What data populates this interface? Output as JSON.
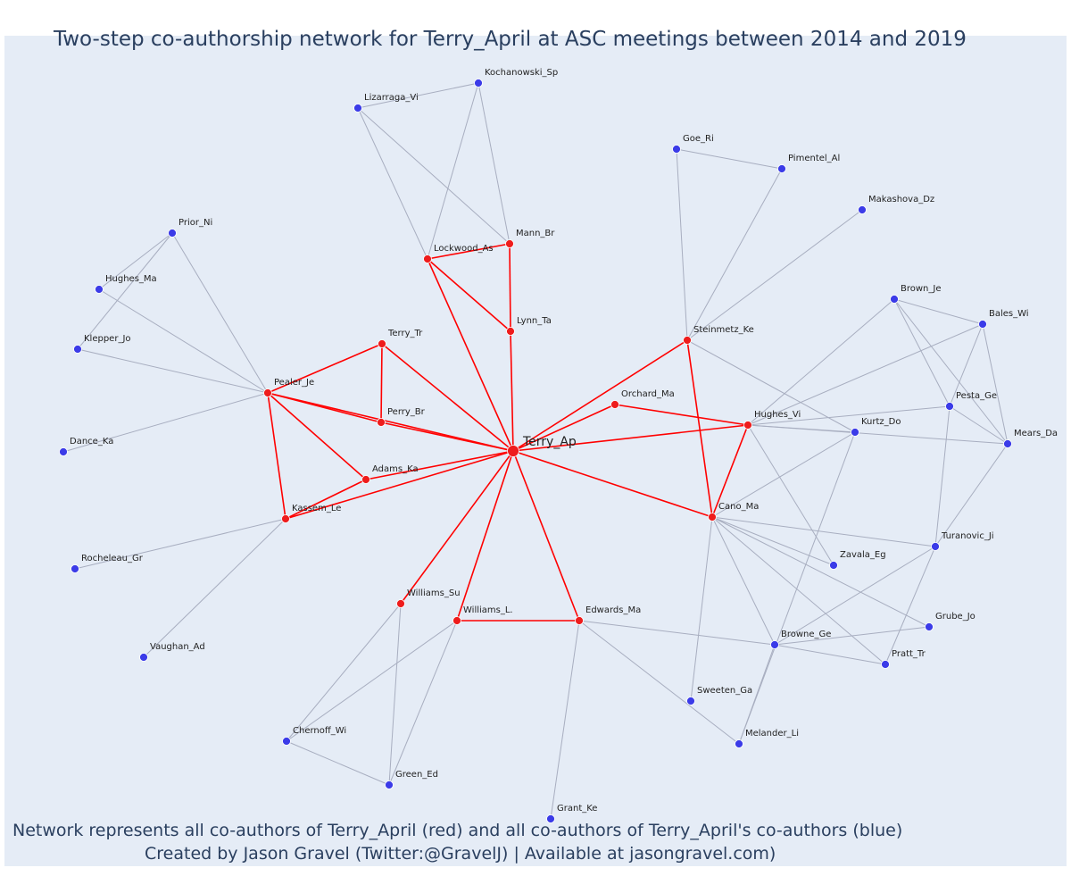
{
  "title": "Two-step co-authorship network for Terry_April at ASC meetings between 2014 and 2019",
  "caption_line1": "Network represents all co-authors of Terry_April (red) and all co-authors of Terry_April's co-authors (blue)",
  "caption_line2": "Created by Jason Gravel (Twitter:@GravelJ) | Available at jasongravel.com)",
  "colors": {
    "background": "#e5ecf6",
    "red_node": "#ee1c1c",
    "blue_node": "#3b3be8",
    "red_edge": "#ff0000",
    "grey_edge": "#a8aec0"
  },
  "nodes": [
    {
      "id": "Terry_Ap",
      "label": "Terry_Ap",
      "group": "center"
    },
    {
      "id": "Lockwood_As",
      "label": "Lockwood_As",
      "group": "red"
    },
    {
      "id": "Mann_Br",
      "label": "Mann_Br",
      "group": "red"
    },
    {
      "id": "Lynn_Ta",
      "label": "Lynn_Ta",
      "group": "red"
    },
    {
      "id": "Terry_Tr",
      "label": "Terry_Tr",
      "group": "red"
    },
    {
      "id": "Pealer_Je",
      "label": "Pealer_Je",
      "group": "red"
    },
    {
      "id": "Perry_Br",
      "label": "Perry_Br",
      "group": "red"
    },
    {
      "id": "Orchard_Ma",
      "label": "Orchard_Ma",
      "group": "red"
    },
    {
      "id": "Steinmetz_Ke",
      "label": "Steinmetz_Ke",
      "group": "red"
    },
    {
      "id": "Hughes_Vi",
      "label": "Hughes_Vi",
      "group": "red"
    },
    {
      "id": "Adams_Ka",
      "label": "Adams_Ka",
      "group": "red"
    },
    {
      "id": "Kassem_Le",
      "label": "Kassem_Le",
      "group": "red"
    },
    {
      "id": "Cano_Ma",
      "label": "Cano_Ma",
      "group": "red"
    },
    {
      "id": "Williams_Su",
      "label": "Williams_Su",
      "group": "red"
    },
    {
      "id": "Williams_L.",
      "label": "Williams_L.",
      "group": "red"
    },
    {
      "id": "Edwards_Ma",
      "label": "Edwards_Ma",
      "group": "red"
    },
    {
      "id": "Kochanowski_Sp",
      "label": "Kochanowski_Sp",
      "group": "blue"
    },
    {
      "id": "Lizarraga_Vi",
      "label": "Lizarraga_Vi",
      "group": "blue"
    },
    {
      "id": "Goe_Ri",
      "label": "Goe_Ri",
      "group": "blue"
    },
    {
      "id": "Pimentel_Al",
      "label": "Pimentel_Al",
      "group": "blue"
    },
    {
      "id": "Makashova_Dz",
      "label": "Makashova_Dz",
      "group": "blue"
    },
    {
      "id": "Prior_Ni",
      "label": "Prior_Ni",
      "group": "blue"
    },
    {
      "id": "Hughes_Ma",
      "label": "Hughes_Ma",
      "group": "blue"
    },
    {
      "id": "Klepper_Jo",
      "label": "Klepper_Jo",
      "group": "blue"
    },
    {
      "id": "Dance_Ka",
      "label": "Dance_Ka",
      "group": "blue"
    },
    {
      "id": "Rocheleau_Gr",
      "label": "Rocheleau_Gr",
      "group": "blue"
    },
    {
      "id": "Vaughan_Ad",
      "label": "Vaughan_Ad",
      "group": "blue"
    },
    {
      "id": "Brown_Je",
      "label": "Brown_Je",
      "group": "blue"
    },
    {
      "id": "Bales_Wi",
      "label": "Bales_Wi",
      "group": "blue"
    },
    {
      "id": "Pesta_Ge",
      "label": "Pesta_Ge",
      "group": "blue"
    },
    {
      "id": "Kurtz_Do",
      "label": "Kurtz_Do",
      "group": "blue"
    },
    {
      "id": "Mears_Da",
      "label": "Mears_Da",
      "group": "blue"
    },
    {
      "id": "Turanovic_Ji",
      "label": "Turanovic_Ji",
      "group": "blue"
    },
    {
      "id": "Zavala_Eg",
      "label": "Zavala_Eg",
      "group": "blue"
    },
    {
      "id": "Grube_Jo",
      "label": "Grube_Jo",
      "group": "blue"
    },
    {
      "id": "Browne_Ge",
      "label": "Browne_Ge",
      "group": "blue"
    },
    {
      "id": "Pratt_Tr",
      "label": "Pratt_Tr",
      "group": "blue"
    },
    {
      "id": "Sweeten_Ga",
      "label": "Sweeten_Ga",
      "group": "blue"
    },
    {
      "id": "Melander_Li",
      "label": "Melander_Li",
      "group": "blue"
    },
    {
      "id": "Chernoff_Wi",
      "label": "Chernoff_Wi",
      "group": "blue"
    },
    {
      "id": "Green_Ed",
      "label": "Green_Ed",
      "group": "blue"
    },
    {
      "id": "Grant_Ke",
      "label": "Grant_Ke",
      "group": "blue"
    }
  ],
  "red_edges": [
    [
      "Terry_Ap",
      "Lockwood_As"
    ],
    [
      "Terry_Ap",
      "Lynn_Ta"
    ],
    [
      "Terry_Ap",
      "Terry_Tr"
    ],
    [
      "Terry_Ap",
      "Perry_Br"
    ],
    [
      "Terry_Ap",
      "Pealer_Je"
    ],
    [
      "Terry_Ap",
      "Orchard_Ma"
    ],
    [
      "Terry_Ap",
      "Steinmetz_Ke"
    ],
    [
      "Terry_Ap",
      "Hughes_Vi"
    ],
    [
      "Terry_Ap",
      "Cano_Ma"
    ],
    [
      "Terry_Ap",
      "Adams_Ka"
    ],
    [
      "Terry_Ap",
      "Kassem_Le"
    ],
    [
      "Terry_Ap",
      "Williams_Su"
    ],
    [
      "Terry_Ap",
      "Williams_L."
    ],
    [
      "Terry_Ap",
      "Edwards_Ma"
    ],
    [
      "Lockwood_As",
      "Mann_Br"
    ],
    [
      "Lockwood_As",
      "Lynn_Ta"
    ],
    [
      "Mann_Br",
      "Lynn_Ta"
    ],
    [
      "Pealer_Je",
      "Terry_Tr"
    ],
    [
      "Pealer_Je",
      "Perry_Br"
    ],
    [
      "Pealer_Je",
      "Adams_Ka"
    ],
    [
      "Pealer_Je",
      "Kassem_Le"
    ],
    [
      "Terry_Tr",
      "Perry_Br"
    ],
    [
      "Adams_Ka",
      "Kassem_Le"
    ],
    [
      "Orchard_Ma",
      "Hughes_Vi"
    ],
    [
      "Steinmetz_Ke",
      "Cano_Ma"
    ],
    [
      "Hughes_Vi",
      "Cano_Ma"
    ],
    [
      "Williams_L.",
      "Edwards_Ma"
    ]
  ],
  "grey_edges": [
    [
      "Lizarraga_Vi",
      "Kochanowski_Sp"
    ],
    [
      "Lizarraga_Vi",
      "Lockwood_As"
    ],
    [
      "Lizarraga_Vi",
      "Mann_Br"
    ],
    [
      "Kochanowski_Sp",
      "Lockwood_As"
    ],
    [
      "Kochanowski_Sp",
      "Mann_Br"
    ],
    [
      "Goe_Ri",
      "Pimentel_Al"
    ],
    [
      "Goe_Ri",
      "Steinmetz_Ke"
    ],
    [
      "Pimentel_Al",
      "Steinmetz_Ke"
    ],
    [
      "Makashova_Dz",
      "Steinmetz_Ke"
    ],
    [
      "Steinmetz_Ke",
      "Kurtz_Do"
    ],
    [
      "Prior_Ni",
      "Hughes_Ma"
    ],
    [
      "Prior_Ni",
      "Klepper_Jo"
    ],
    [
      "Prior_Ni",
      "Pealer_Je"
    ],
    [
      "Hughes_Ma",
      "Pealer_Je"
    ],
    [
      "Klepper_Jo",
      "Pealer_Je"
    ],
    [
      "Dance_Ka",
      "Pealer_Je"
    ],
    [
      "Rocheleau_Gr",
      "Kassem_Le"
    ],
    [
      "Vaughan_Ad",
      "Kassem_Le"
    ],
    [
      "Brown_Je",
      "Bales_Wi"
    ],
    [
      "Brown_Je",
      "Pesta_Ge"
    ],
    [
      "Brown_Je",
      "Mears_Da"
    ],
    [
      "Brown_Je",
      "Hughes_Vi"
    ],
    [
      "Bales_Wi",
      "Pesta_Ge"
    ],
    [
      "Bales_Wi",
      "Mears_Da"
    ],
    [
      "Bales_Wi",
      "Hughes_Vi"
    ],
    [
      "Pesta_Ge",
      "Mears_Da"
    ],
    [
      "Pesta_Ge",
      "Hughes_Vi"
    ],
    [
      "Pesta_Ge",
      "Turanovic_Ji"
    ],
    [
      "Hughes_Vi",
      "Kurtz_Do"
    ],
    [
      "Hughes_Vi",
      "Mears_Da"
    ],
    [
      "Hughes_Vi",
      "Zavala_Eg"
    ],
    [
      "Kurtz_Do",
      "Cano_Ma"
    ],
    [
      "Kurtz_Do",
      "Melander_Li"
    ],
    [
      "Mears_Da",
      "Turanovic_Ji"
    ],
    [
      "Turanovic_Ji",
      "Cano_Ma"
    ],
    [
      "Turanovic_Ji",
      "Browne_Ge"
    ],
    [
      "Turanovic_Ji",
      "Pratt_Tr"
    ],
    [
      "Cano_Ma",
      "Zavala_Eg"
    ],
    [
      "Cano_Ma",
      "Grube_Jo"
    ],
    [
      "Cano_Ma",
      "Browne_Ge"
    ],
    [
      "Cano_Ma",
      "Pratt_Tr"
    ],
    [
      "Cano_Ma",
      "Sweeten_Ga"
    ],
    [
      "Grube_Jo",
      "Browne_Ge"
    ],
    [
      "Browne_Ge",
      "Pratt_Tr"
    ],
    [
      "Browne_Ge",
      "Melander_Li"
    ],
    [
      "Browne_Ge",
      "Edwards_Ma"
    ],
    [
      "Edwards_Ma",
      "Melander_Li"
    ],
    [
      "Edwards_Ma",
      "Grant_Ke"
    ],
    [
      "Williams_Su",
      "Chernoff_Wi"
    ],
    [
      "Williams_Su",
      "Green_Ed"
    ],
    [
      "Williams_L.",
      "Chernoff_Wi"
    ],
    [
      "Williams_L.",
      "Green_Ed"
    ],
    [
      "Chernoff_Wi",
      "Green_Ed"
    ]
  ]
}
